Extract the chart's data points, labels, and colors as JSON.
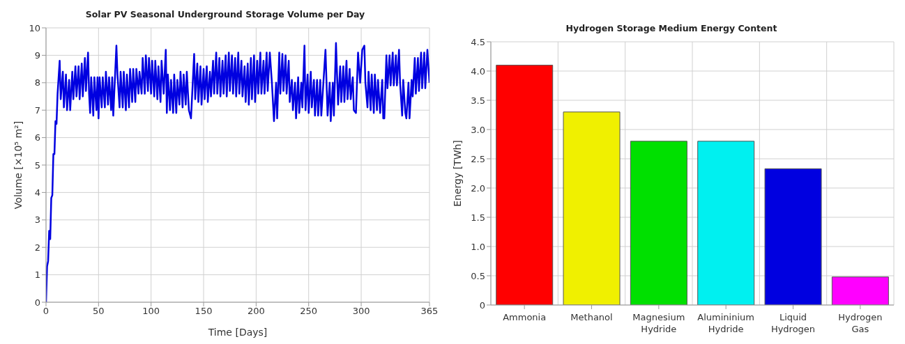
{
  "chart_data": [
    {
      "type": "line",
      "title": "Solar PV Seasonal Underground Storage Volume per Day",
      "xlabel": "Time [Days]",
      "ylabel": "Volume [×10⁵ m²]",
      "color": "#0000e0",
      "grid": true,
      "xlim": [
        0,
        365
      ],
      "xticks": [
        0,
        50,
        100,
        150,
        200,
        250,
        300,
        365
      ],
      "ylim": [
        0,
        10
      ],
      "yticks": [
        0,
        1,
        2,
        3,
        4,
        5,
        6,
        7,
        8,
        9,
        10
      ],
      "x": [
        0,
        1,
        2,
        3,
        4,
        5,
        6,
        7,
        8,
        9,
        10,
        11,
        13,
        14,
        16,
        17,
        19,
        20,
        22,
        23,
        25,
        26,
        28,
        29,
        31,
        32,
        34,
        35,
        37,
        38,
        40,
        41,
        42,
        43,
        45,
        46,
        48,
        49,
        50,
        51,
        53,
        54,
        56,
        57,
        59,
        60,
        62,
        63,
        64,
        67,
        68,
        70,
        71,
        73,
        74,
        76,
        77,
        79,
        80,
        82,
        83,
        85,
        86,
        88,
        89,
        91,
        92,
        94,
        95,
        97,
        98,
        100,
        101,
        103,
        104,
        106,
        107,
        109,
        110,
        112,
        114,
        115,
        116,
        118,
        119,
        121,
        122,
        124,
        125,
        127,
        128,
        130,
        131,
        133,
        134,
        136,
        138,
        141,
        142,
        144,
        145,
        147,
        148,
        150,
        151,
        153,
        154,
        156,
        157,
        159,
        160,
        162,
        163,
        165,
        166,
        168,
        169,
        171,
        172,
        174,
        175,
        177,
        178,
        180,
        181,
        183,
        184,
        186,
        187,
        189,
        190,
        192,
        193,
        195,
        196,
        198,
        199,
        201,
        202,
        204,
        205,
        207,
        208,
        210,
        211,
        213,
        215,
        217,
        219,
        220,
        222,
        223,
        225,
        226,
        228,
        229,
        231,
        232,
        234,
        235,
        237,
        238,
        240,
        241,
        243,
        244,
        246,
        247,
        249,
        250,
        252,
        253,
        255,
        256,
        258,
        259,
        261,
        262,
        264,
        266,
        268,
        270,
        271,
        273,
        274,
        276,
        278,
        280,
        281,
        283,
        284,
        286,
        287,
        289,
        290,
        292,
        293,
        295,
        297,
        299,
        301,
        303,
        304,
        306,
        307,
        309,
        310,
        312,
        313,
        315,
        316,
        318,
        320,
        321,
        322,
        324,
        325,
        327,
        328,
        330,
        331,
        333,
        334,
        336,
        337,
        339,
        340,
        342,
        343,
        345,
        346,
        348,
        349,
        351,
        352,
        354,
        355,
        357,
        358,
        360,
        361,
        363,
        365
      ],
      "values": [
        0,
        1.3,
        1.5,
        2.6,
        2.3,
        3.8,
        3.9,
        5.4,
        5.4,
        6.6,
        6.5,
        7.6,
        8.8,
        7.4,
        8.4,
        7.1,
        8.3,
        7.0,
        8.1,
        7.0,
        8.4,
        7.4,
        8.6,
        7.5,
        8.6,
        7.4,
        8.7,
        7.5,
        8.9,
        7.7,
        9.1,
        7.6,
        6.9,
        8.2,
        6.8,
        8.2,
        7.0,
        8.2,
        6.7,
        8.2,
        7.1,
        8.2,
        7.1,
        8.4,
        7.2,
        8.2,
        7.0,
        8.2,
        6.8,
        9.35,
        8.3,
        7.1,
        8.4,
        7.1,
        8.4,
        7.0,
        8.3,
        7.1,
        8.5,
        7.3,
        8.5,
        7.3,
        8.5,
        7.6,
        8.4,
        7.6,
        8.9,
        7.6,
        9.0,
        7.7,
        8.9,
        7.6,
        8.8,
        7.5,
        8.8,
        7.4,
        8.6,
        7.3,
        8.8,
        7.6,
        9.2,
        6.9,
        8.3,
        7.0,
        8.1,
        6.9,
        8.3,
        6.9,
        8.1,
        7.2,
        8.4,
        7.1,
        8.3,
        7.2,
        8.4,
        7.0,
        6.7,
        9.05,
        7.4,
        8.7,
        7.3,
        8.6,
        7.2,
        8.5,
        7.4,
        8.6,
        7.3,
        8.4,
        7.5,
        8.8,
        7.6,
        9.1,
        7.6,
        8.9,
        7.5,
        8.8,
        7.6,
        9.0,
        7.5,
        9.1,
        7.7,
        9.0,
        7.6,
        8.9,
        7.5,
        9.1,
        7.6,
        8.8,
        7.5,
        8.6,
        7.3,
        8.7,
        7.2,
        8.9,
        7.4,
        9.0,
        7.3,
        8.8,
        7.6,
        9.1,
        7.6,
        8.8,
        7.6,
        9.1,
        7.7,
        9.1,
        8.0,
        6.6,
        8.0,
        6.7,
        9.1,
        7.6,
        9.05,
        7.7,
        9.0,
        7.6,
        8.8,
        7.3,
        8.1,
        7.0,
        8.0,
        6.7,
        8.2,
        6.9,
        8.0,
        7.1,
        9.35,
        7.0,
        8.3,
        6.9,
        8.4,
        7.1,
        8.1,
        6.8,
        8.1,
        6.8,
        8.1,
        6.8,
        8.0,
        9.2,
        6.8,
        8.0,
        6.6,
        8.0,
        6.8,
        9.45,
        7.2,
        8.6,
        7.3,
        8.6,
        7.3,
        8.8,
        7.4,
        8.5,
        7.4,
        8.2,
        7.0,
        6.9,
        9.1,
        8.0,
        9.2,
        9.35,
        8.0,
        7.1,
        8.4,
        7.0,
        8.3,
        6.9,
        8.3,
        7.0,
        8.1,
        6.9,
        8.1,
        6.7,
        6.7,
        9.0,
        7.8,
        9.0,
        7.9,
        9.1,
        7.9,
        9.0,
        7.9,
        9.2,
        8.0,
        6.8,
        8.1,
        6.9,
        6.7,
        8.0,
        6.7,
        8.1,
        7.5,
        8.9,
        7.6,
        8.9,
        7.7,
        9.1,
        7.8,
        9.1,
        7.8,
        9.2,
        8.0
      ]
    },
    {
      "type": "bar",
      "title": "Hydrogen Storage Medium Energy Content",
      "ylabel": "Energy [TWh]",
      "grid": true,
      "categories": [
        "Ammonia",
        "Methanol",
        "Magnesium Hydride",
        "Alumininium Hydride",
        "Liquid Hydrogen",
        "Hydrogen Gas"
      ],
      "values": [
        4.1,
        3.3,
        2.8,
        2.8,
        2.33,
        0.48
      ],
      "colors": [
        "#ff0000",
        "#f0f000",
        "#00e000",
        "#00f0f0",
        "#0000e0",
        "#ff00ff"
      ],
      "ylim": [
        0,
        4.5
      ],
      "yticks": [
        0,
        0.5,
        {
          "value": 1,
          "label": "1.0"
        },
        1.5,
        {
          "value": 2,
          "label": "2.0"
        },
        2.5,
        {
          "value": 3,
          "label": "3.0"
        },
        3.5,
        {
          "value": 4,
          "label": "4.0"
        },
        4.5
      ]
    }
  ]
}
